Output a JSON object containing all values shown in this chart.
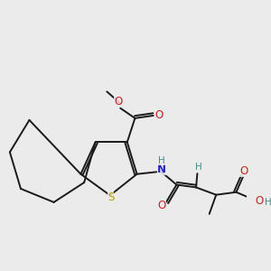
{
  "background_color": "#ebebeb",
  "bond_color": "#1a1a1a",
  "S_color": "#b8a000",
  "N_color": "#2020cc",
  "O_color": "#cc2020",
  "H_color": "#4a8888",
  "figsize": [
    3.0,
    3.0
  ],
  "dpi": 100,
  "xlim": [
    0,
    10
  ],
  "ylim": [
    0,
    10
  ]
}
